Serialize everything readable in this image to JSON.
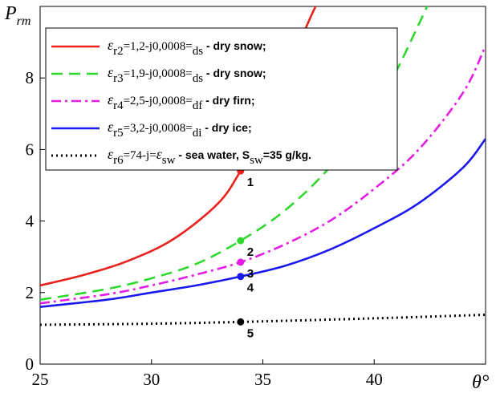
{
  "chart_data": {
    "type": "line",
    "title": "",
    "ylabel_main": "P",
    "ylabel_sub": "rm",
    "xlabel": "θ°",
    "xlim": [
      25,
      45
    ],
    "ylim": [
      0,
      10
    ],
    "x_ticks": [
      25,
      30,
      35,
      40
    ],
    "y_ticks": [
      0,
      2,
      4,
      6,
      8
    ],
    "grid": false,
    "legend_position": "top",
    "series": [
      {
        "color": "#e8231e",
        "dash": "solid",
        "legend": {
          "sym": "ε",
          "sub1": "r2",
          "mid": "=1,2-j0,0008=",
          "sub2": "ds",
          "desc": " - dry snow;"
        },
        "x": [
          25,
          27,
          29,
          31,
          33,
          34,
          35,
          36,
          37,
          37.6
        ],
        "y": [
          2.2,
          2.5,
          2.9,
          3.5,
          4.5,
          5.4,
          6.5,
          8.0,
          9.5,
          10.3
        ]
      },
      {
        "color": "#2ed82e",
        "dash": "long",
        "legend": {
          "sym": "ε",
          "sub1": "r3",
          "mid": "=1,9-j0,0008=",
          "sub2": "ds",
          "desc": " - dry snow;"
        },
        "x": [
          25,
          28,
          30,
          32,
          34,
          36,
          38,
          40,
          41,
          42,
          42.6
        ],
        "y": [
          1.8,
          2.1,
          2.4,
          2.8,
          3.45,
          4.3,
          5.5,
          7.1,
          8.2,
          9.5,
          10.3
        ]
      },
      {
        "color": "#e41de4",
        "dash": "dashdot",
        "legend": {
          "sym": "ε",
          "sub1": "r4",
          "mid": "=2,5-j0,0008=",
          "sub2": "df",
          "desc": " - dry firn;"
        },
        "x": [
          25,
          28,
          30,
          32,
          34,
          36,
          38,
          40,
          42,
          44,
          45
        ],
        "y": [
          1.7,
          1.95,
          2.2,
          2.5,
          2.85,
          3.35,
          4.0,
          4.9,
          6.0,
          7.6,
          8.9
        ]
      },
      {
        "color": "#1a1af0",
        "dash": "solid",
        "legend": {
          "sym": "ε",
          "sub1": "r5",
          "mid": "=3,2-j0,0008=",
          "sub2": "di",
          "desc": " - dry ice;"
        },
        "x": [
          25,
          28,
          30,
          32,
          34,
          36,
          38,
          40,
          42,
          44,
          45
        ],
        "y": [
          1.6,
          1.8,
          2.0,
          2.2,
          2.45,
          2.75,
          3.2,
          3.8,
          4.5,
          5.5,
          6.3
        ]
      },
      {
        "color": "#000000",
        "dash": "dotted",
        "legend": {
          "sym": "ε",
          "sub1": "r6",
          "mid": "=74-j=",
          "sym2": "ε",
          "sub2": "sw",
          "desc": " -  sea water,  S",
          "sub3": "sw",
          "tail": "=35 g/kg."
        },
        "x": [
          25,
          30,
          34,
          40,
          45
        ],
        "y": [
          1.1,
          1.13,
          1.18,
          1.28,
          1.38
        ]
      }
    ],
    "markers": [
      {
        "x": 34,
        "y": 5.4,
        "label": "1",
        "color": "#e8231e"
      },
      {
        "x": 34,
        "y": 3.45,
        "label": "2",
        "color": "#2ed82e"
      },
      {
        "x": 34,
        "y": 2.85,
        "label": "3",
        "color": "#e41de4"
      },
      {
        "x": 34,
        "y": 2.45,
        "label": "4",
        "color": "#1a1af0"
      },
      {
        "x": 34,
        "y": 1.18,
        "label": "5",
        "color": "#000000"
      }
    ]
  }
}
